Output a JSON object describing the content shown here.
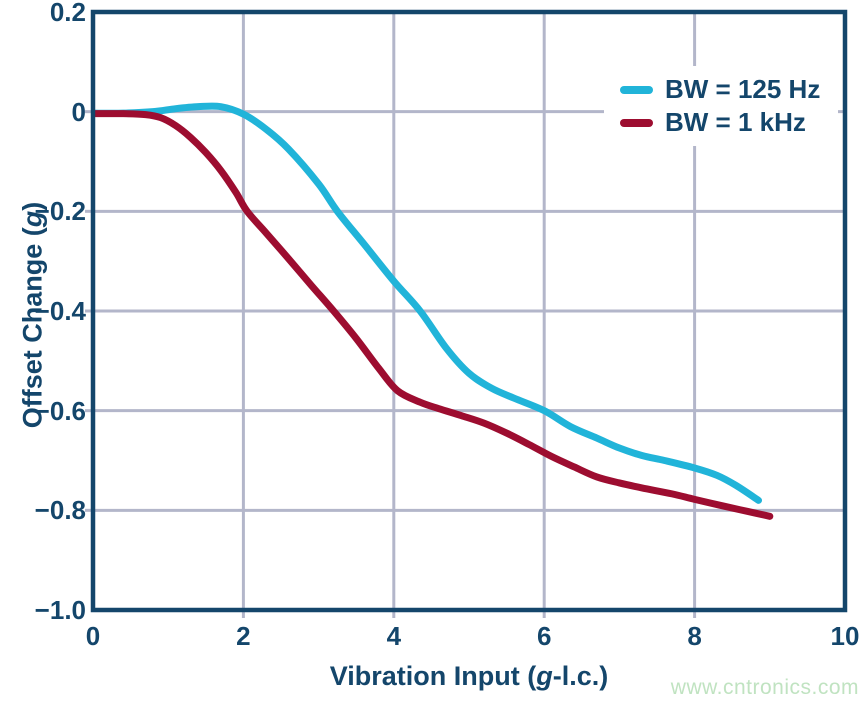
{
  "watermark": {
    "text": "www.cntronics.com",
    "color": "#c0e3c1"
  },
  "chart_data": {
    "type": "line",
    "title": "",
    "xlabel": {
      "prefix": "Vibration Input (",
      "italic": "g",
      "suffix": "-l.c.)"
    },
    "ylabel": {
      "prefix": "Offset Change (",
      "italic": "g",
      "suffix": ")"
    },
    "xlim": [
      0,
      10
    ],
    "ylim": [
      -1.0,
      0.2
    ],
    "grid": true,
    "legend_position": "top-right",
    "colors": {
      "frame": "#14466b",
      "text": "#14466b",
      "grid": "#b3b6ca",
      "background": "#ffffff"
    },
    "xticks": [
      {
        "value": 0,
        "label": "0"
      },
      {
        "value": 2,
        "label": "2"
      },
      {
        "value": 4,
        "label": "4"
      },
      {
        "value": 6,
        "label": "6"
      },
      {
        "value": 8,
        "label": "8"
      },
      {
        "value": 10,
        "label": "10"
      }
    ],
    "yticks": [
      {
        "value": 0.2,
        "label": "0.2"
      },
      {
        "value": 0,
        "label": "0"
      },
      {
        "value": -0.2,
        "label": "−0.2"
      },
      {
        "value": -0.4,
        "label": "−0.4"
      },
      {
        "value": -0.6,
        "label": "−0.6"
      },
      {
        "value": -0.8,
        "label": "−0.8"
      },
      {
        "value": -1.0,
        "label": "−1.0"
      }
    ],
    "grid_x": [
      2,
      4,
      6,
      8
    ],
    "grid_y": [
      0,
      -0.2,
      -0.4,
      -0.6,
      -0.8
    ],
    "series": [
      {
        "name": "BW = 125 Hz",
        "color": "#21b4d9",
        "points": [
          [
            0,
            -0.003
          ],
          [
            0.4,
            -0.003
          ],
          [
            0.8,
            0.0
          ],
          [
            1.1,
            0.006
          ],
          [
            1.4,
            0.01
          ],
          [
            1.7,
            0.01
          ],
          [
            2.0,
            -0.005
          ],
          [
            2.3,
            -0.035
          ],
          [
            2.6,
            -0.075
          ],
          [
            3.0,
            -0.145
          ],
          [
            3.25,
            -0.2
          ],
          [
            3.6,
            -0.265
          ],
          [
            4.0,
            -0.34
          ],
          [
            4.35,
            -0.4
          ],
          [
            4.7,
            -0.475
          ],
          [
            5.0,
            -0.525
          ],
          [
            5.3,
            -0.555
          ],
          [
            5.6,
            -0.575
          ],
          [
            6.0,
            -0.6
          ],
          [
            6.35,
            -0.632
          ],
          [
            6.7,
            -0.655
          ],
          [
            7.0,
            -0.675
          ],
          [
            7.3,
            -0.69
          ],
          [
            7.6,
            -0.7
          ],
          [
            8.0,
            -0.715
          ],
          [
            8.3,
            -0.73
          ],
          [
            8.55,
            -0.75
          ],
          [
            8.85,
            -0.78
          ]
        ]
      },
      {
        "name": "BW = 1 kHz",
        "color": "#9d0d30",
        "points": [
          [
            0,
            -0.004
          ],
          [
            0.4,
            -0.004
          ],
          [
            0.7,
            -0.006
          ],
          [
            0.9,
            -0.012
          ],
          [
            1.1,
            -0.028
          ],
          [
            1.3,
            -0.052
          ],
          [
            1.5,
            -0.082
          ],
          [
            1.7,
            -0.118
          ],
          [
            1.9,
            -0.162
          ],
          [
            2.05,
            -0.2
          ],
          [
            2.3,
            -0.243
          ],
          [
            2.6,
            -0.295
          ],
          [
            2.9,
            -0.348
          ],
          [
            3.2,
            -0.4
          ],
          [
            3.5,
            -0.455
          ],
          [
            3.8,
            -0.515
          ],
          [
            4.05,
            -0.56
          ],
          [
            4.35,
            -0.583
          ],
          [
            4.6,
            -0.596
          ],
          [
            4.9,
            -0.61
          ],
          [
            5.2,
            -0.625
          ],
          [
            5.5,
            -0.645
          ],
          [
            5.8,
            -0.668
          ],
          [
            6.1,
            -0.692
          ],
          [
            6.4,
            -0.713
          ],
          [
            6.7,
            -0.733
          ],
          [
            7.0,
            -0.745
          ],
          [
            7.3,
            -0.755
          ],
          [
            7.7,
            -0.767
          ],
          [
            8.0,
            -0.778
          ],
          [
            8.4,
            -0.792
          ],
          [
            8.7,
            -0.802
          ],
          [
            9.0,
            -0.812
          ]
        ]
      }
    ]
  }
}
